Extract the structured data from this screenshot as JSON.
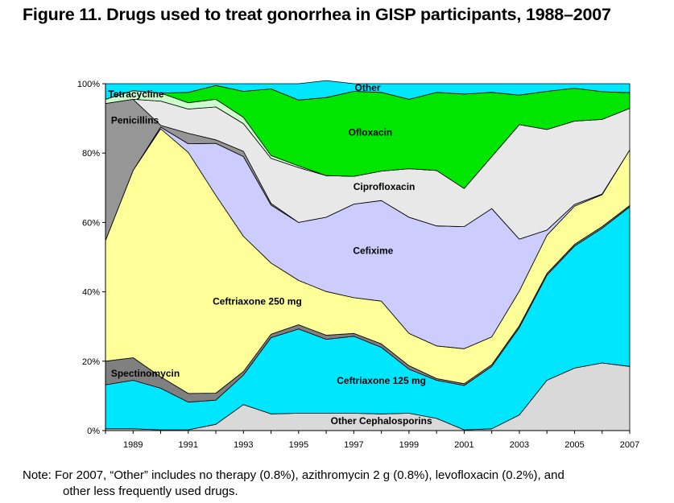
{
  "title": "Figure 11. Drugs used to treat gonorrhea in GISP participants, 1988–2007",
  "note": {
    "line1": "Note: For 2007, “Other” includes no therapy (0.8%), azithromycin 2 g (0.8%), levofloxacin (0.2%), and",
    "line2": "other less frequently used drugs."
  },
  "chart_data": {
    "type": "area",
    "stacked": true,
    "x": [
      1988,
      1989,
      1990,
      1991,
      1992,
      1993,
      1994,
      1995,
      1996,
      1997,
      1998,
      1999,
      2000,
      2001,
      2002,
      2003,
      2004,
      2005,
      2006,
      2007
    ],
    "x_tick_labels": [
      "1989",
      "1991",
      "1993",
      "1995",
      "1997",
      "1999",
      "2001",
      "2003",
      "2005",
      "2007"
    ],
    "y_tick_labels": [
      "0%",
      "20%",
      "40%",
      "60%",
      "80%",
      "100%"
    ],
    "ylim": [
      0,
      100
    ],
    "grid": false,
    "series": [
      {
        "name": "Other Cephalosporins",
        "color": "#d9d9d9",
        "values": [
          0.5,
          0.5,
          0.2,
          0.2,
          1.8,
          7.5,
          4.8,
          5.0,
          5.0,
          5.0,
          4.8,
          5.0,
          3.5,
          0.2,
          0.5,
          4.5,
          14.5,
          18.0,
          19.5,
          18.5
        ]
      },
      {
        "name": "Ceftriaxone 125 mg",
        "color": "#00e6ff",
        "values": [
          12.7,
          14.0,
          12.0,
          8.0,
          7.0,
          8.5,
          22.0,
          24.3,
          21.3,
          22.2,
          19.2,
          12.7,
          11.0,
          12.8,
          18.0,
          25.2,
          30.3,
          35.2,
          38.8,
          46.0
        ]
      },
      {
        "name": "Spectinomycin",
        "color": "#808080",
        "values": [
          6.8,
          6.5,
          3.3,
          2.5,
          2.0,
          1.0,
          1.0,
          1.2,
          1.2,
          0.8,
          1.0,
          1.0,
          0.5,
          0.5,
          0.5,
          0.5,
          0.5,
          0.5,
          0.5,
          0.4
        ]
      },
      {
        "name": "Ceftriaxone 250 mg",
        "color": "#ffff99",
        "values": [
          34.8,
          54.0,
          71.5,
          69.5,
          57.0,
          39.0,
          20.5,
          12.8,
          12.6,
          10.3,
          12.3,
          9.3,
          9.4,
          10.1,
          8.0,
          10.0,
          11.0,
          11.0,
          9.2,
          16.0
        ]
      },
      {
        "name": "Cefixime",
        "color": "#ccccff",
        "values": [
          0,
          0,
          0.5,
          2.5,
          15.0,
          23.0,
          16.7,
          16.7,
          21.4,
          27.0,
          29.0,
          33.5,
          34.6,
          35.2,
          37.0,
          15.0,
          1.5,
          0.5,
          0.2,
          0
        ]
      },
      {
        "name": "Penicillins",
        "color": "#969696",
        "values": [
          39.5,
          20.5,
          0.5,
          3.0,
          1.0,
          1.5,
          0.5,
          0,
          0,
          0,
          0,
          0,
          0,
          0,
          0,
          0,
          0,
          0,
          0,
          0
        ]
      },
      {
        "name": "Ciprofloxacin",
        "color": "#e8e8e8",
        "values": [
          0,
          0,
          7.0,
          7.0,
          9.5,
          8.0,
          13.0,
          15.8,
          12.0,
          8.0,
          8.5,
          14.0,
          16.0,
          11.0,
          15.0,
          33.0,
          29.0,
          24.0,
          21.5,
          12.0
        ]
      },
      {
        "name": "Tetracycline",
        "color": "#ccffcc",
        "values": [
          1.2,
          2.5,
          2.3,
          1.8,
          2.2,
          1.8,
          0.8,
          0.5,
          0,
          0,
          0,
          0,
          0,
          0,
          0,
          0,
          0,
          0,
          0,
          0
        ]
      },
      {
        "name": "Ofloxacin",
        "color": "#00e600",
        "values": [
          0,
          0,
          0,
          3.0,
          4.0,
          7.5,
          19.2,
          19.0,
          22.5,
          24.5,
          22.7,
          20.0,
          22.5,
          27.2,
          18.5,
          8.5,
          11.0,
          9.5,
          8.0,
          4.5
        ]
      },
      {
        "name": "Other",
        "color": "#00e6ff",
        "values": [
          4.5,
          2.0,
          2.7,
          2.5,
          0.5,
          2.2,
          1.5,
          4.7,
          4.9,
          2.2,
          2.5,
          4.5,
          2.5,
          3.0,
          2.5,
          3.3,
          2.2,
          1.3,
          2.3,
          2.6
        ]
      }
    ]
  }
}
